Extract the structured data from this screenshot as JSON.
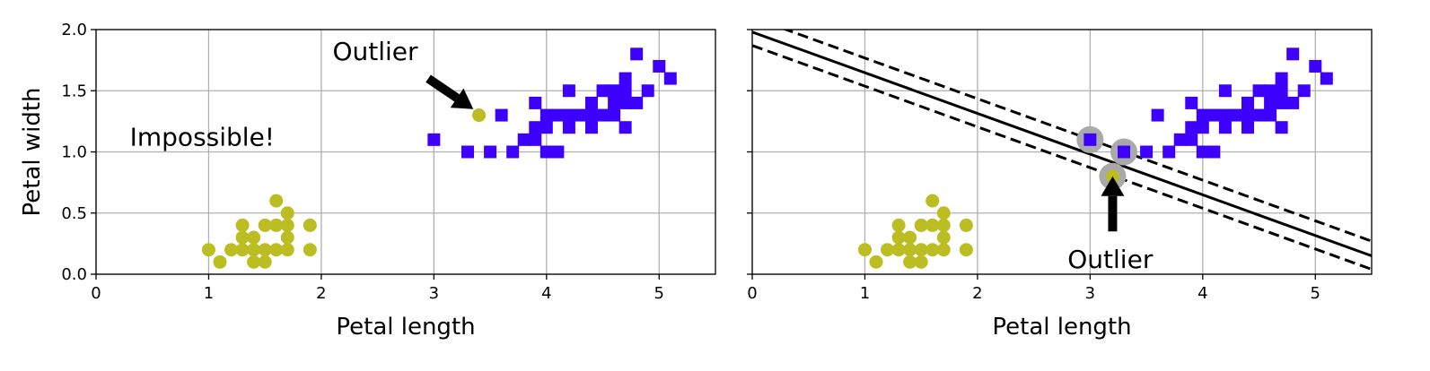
{
  "chart_data": [
    {
      "type": "scatter",
      "title": "",
      "xlabel": "Petal length",
      "ylabel": "Petal width",
      "xlim": [
        0,
        5.5
      ],
      "ylim": [
        0,
        2.0
      ],
      "xticks": [
        "0",
        "1",
        "2",
        "3",
        "4",
        "5"
      ],
      "yticks": [
        "0.0",
        "0.5",
        "1.0",
        "1.5",
        "2.0"
      ],
      "grid": true,
      "series": [
        {
          "marker": "circle",
          "color": "#bcbd22",
          "points": [
            [
              1.0,
              0.2
            ],
            [
              1.1,
              0.1
            ],
            [
              1.2,
              0.2
            ],
            [
              1.3,
              0.2
            ],
            [
              1.3,
              0.3
            ],
            [
              1.3,
              0.4
            ],
            [
              1.4,
              0.1
            ],
            [
              1.4,
              0.2
            ],
            [
              1.4,
              0.3
            ],
            [
              1.5,
              0.1
            ],
            [
              1.5,
              0.2
            ],
            [
              1.5,
              0.4
            ],
            [
              1.6,
              0.2
            ],
            [
              1.6,
              0.4
            ],
            [
              1.6,
              0.6
            ],
            [
              1.7,
              0.2
            ],
            [
              1.7,
              0.3
            ],
            [
              1.7,
              0.4
            ],
            [
              1.7,
              0.5
            ],
            [
              1.9,
              0.2
            ],
            [
              1.9,
              0.4
            ],
            [
              3.4,
              1.3
            ]
          ]
        },
        {
          "marker": "square",
          "color": "#3d00ff",
          "points": [
            [
              3.0,
              1.1
            ],
            [
              3.3,
              1.0
            ],
            [
              3.5,
              1.0
            ],
            [
              3.6,
              1.3
            ],
            [
              3.7,
              1.0
            ],
            [
              3.8,
              1.1
            ],
            [
              3.9,
              1.1
            ],
            [
              3.9,
              1.2
            ],
            [
              3.9,
              1.4
            ],
            [
              4.0,
              1.0
            ],
            [
              4.0,
              1.2
            ],
            [
              4.0,
              1.3
            ],
            [
              4.1,
              1.0
            ],
            [
              4.1,
              1.3
            ],
            [
              4.2,
              1.2
            ],
            [
              4.2,
              1.3
            ],
            [
              4.2,
              1.5
            ],
            [
              4.3,
              1.3
            ],
            [
              4.4,
              1.2
            ],
            [
              4.4,
              1.3
            ],
            [
              4.4,
              1.4
            ],
            [
              4.5,
              1.3
            ],
            [
              4.5,
              1.5
            ],
            [
              4.6,
              1.3
            ],
            [
              4.6,
              1.4
            ],
            [
              4.6,
              1.5
            ],
            [
              4.7,
              1.2
            ],
            [
              4.7,
              1.4
            ],
            [
              4.7,
              1.5
            ],
            [
              4.7,
              1.6
            ],
            [
              4.8,
              1.4
            ],
            [
              4.8,
              1.8
            ],
            [
              4.9,
              1.5
            ],
            [
              5.0,
              1.7
            ],
            [
              5.1,
              1.6
            ]
          ]
        }
      ],
      "annotations": [
        {
          "text": "Outlier",
          "x": 2.1,
          "y": 1.75,
          "arrow_tip": [
            3.35,
            1.35
          ],
          "arrow_tail": [
            2.95,
            1.6
          ]
        },
        {
          "text": "Impossible!",
          "x": 0.3,
          "y": 1.05,
          "color": "#d83b2b"
        }
      ]
    },
    {
      "type": "scatter",
      "title": "",
      "xlabel": "Petal length",
      "ylabel": "",
      "xlim": [
        0,
        5.5
      ],
      "ylim": [
        0,
        2.0
      ],
      "xticks": [
        "0",
        "1",
        "2",
        "3",
        "4",
        "5"
      ],
      "yticks": [
        "",
        "",
        "",
        "",
        ""
      ],
      "grid": true,
      "series": [
        {
          "marker": "circle",
          "color": "#bcbd22",
          "points": [
            [
              1.0,
              0.2
            ],
            [
              1.1,
              0.1
            ],
            [
              1.2,
              0.2
            ],
            [
              1.3,
              0.2
            ],
            [
              1.3,
              0.3
            ],
            [
              1.3,
              0.4
            ],
            [
              1.4,
              0.1
            ],
            [
              1.4,
              0.2
            ],
            [
              1.4,
              0.3
            ],
            [
              1.5,
              0.1
            ],
            [
              1.5,
              0.2
            ],
            [
              1.5,
              0.4
            ],
            [
              1.6,
              0.2
            ],
            [
              1.6,
              0.4
            ],
            [
              1.6,
              0.6
            ],
            [
              1.7,
              0.2
            ],
            [
              1.7,
              0.3
            ],
            [
              1.7,
              0.4
            ],
            [
              1.7,
              0.5
            ],
            [
              1.9,
              0.2
            ],
            [
              1.9,
              0.4
            ],
            [
              3.2,
              0.8
            ]
          ]
        },
        {
          "marker": "square",
          "color": "#3d00ff",
          "points": [
            [
              3.0,
              1.1
            ],
            [
              3.3,
              1.0
            ],
            [
              3.5,
              1.0
            ],
            [
              3.6,
              1.3
            ],
            [
              3.7,
              1.0
            ],
            [
              3.8,
              1.1
            ],
            [
              3.9,
              1.1
            ],
            [
              3.9,
              1.2
            ],
            [
              3.9,
              1.4
            ],
            [
              4.0,
              1.0
            ],
            [
              4.0,
              1.2
            ],
            [
              4.0,
              1.3
            ],
            [
              4.1,
              1.0
            ],
            [
              4.1,
              1.3
            ],
            [
              4.2,
              1.2
            ],
            [
              4.2,
              1.3
            ],
            [
              4.2,
              1.5
            ],
            [
              4.3,
              1.3
            ],
            [
              4.4,
              1.2
            ],
            [
              4.4,
              1.3
            ],
            [
              4.4,
              1.4
            ],
            [
              4.5,
              1.3
            ],
            [
              4.5,
              1.5
            ],
            [
              4.6,
              1.3
            ],
            [
              4.6,
              1.4
            ],
            [
              4.6,
              1.5
            ],
            [
              4.7,
              1.2
            ],
            [
              4.7,
              1.4
            ],
            [
              4.7,
              1.5
            ],
            [
              4.7,
              1.6
            ],
            [
              4.8,
              1.4
            ],
            [
              4.8,
              1.8
            ],
            [
              4.9,
              1.5
            ],
            [
              5.0,
              1.7
            ],
            [
              5.1,
              1.6
            ]
          ]
        }
      ],
      "support_vectors": [
        [
          3.0,
          1.1
        ],
        [
          3.3,
          1.0
        ],
        [
          3.2,
          0.8
        ]
      ],
      "decision_boundary": {
        "x": [
          0,
          5.5
        ],
        "y": [
          1.98,
          0.15
        ]
      },
      "margins": [
        {
          "x": [
            0,
            5.5
          ],
          "y": [
            2.1,
            0.27
          ]
        },
        {
          "x": [
            0,
            5.5
          ],
          "y": [
            1.87,
            0.04
          ]
        }
      ],
      "annotations": [
        {
          "text": "Outlier",
          "x": 2.8,
          "y": 0.05,
          "arrow_tip": [
            3.2,
            0.8
          ],
          "arrow_tail": [
            3.2,
            0.35
          ]
        }
      ]
    }
  ]
}
